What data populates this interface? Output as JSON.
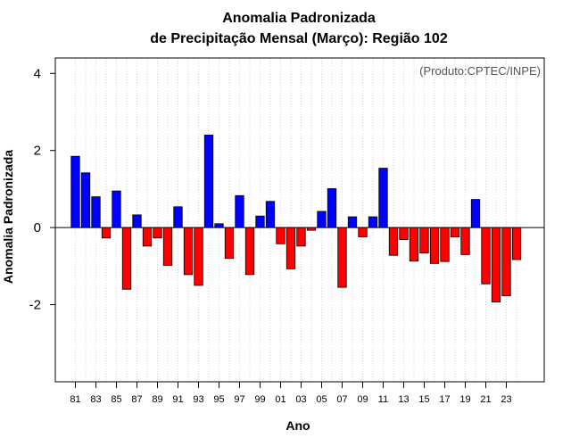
{
  "chart_data": {
    "type": "bar",
    "title_line1": "Anomalia Padronizada",
    "title_line2": "de Precipitação Mensal (Março): Região 102",
    "xlabel": "Ano",
    "ylabel": "Anomalia Padronizada",
    "annotation": "(Produto:CPTEC/INPE)",
    "ylim": [
      -4,
      4.4
    ],
    "yticks": [
      -2,
      0,
      2,
      4
    ],
    "ytick_labels": [
      "-2",
      "0",
      "2",
      "4"
    ],
    "categories": [
      "81",
      "82",
      "83",
      "84",
      "85",
      "86",
      "87",
      "88",
      "89",
      "90",
      "91",
      "92",
      "93",
      "94",
      "95",
      "96",
      "97",
      "98",
      "99",
      "00",
      "01",
      "02",
      "03",
      "04",
      "05",
      "06",
      "07",
      "08",
      "09",
      "10",
      "11",
      "12",
      "13",
      "14",
      "15",
      "16",
      "17",
      "18",
      "19",
      "20",
      "21",
      "22",
      "23",
      "24"
    ],
    "values": [
      1.85,
      1.42,
      0.8,
      -0.27,
      0.95,
      -1.6,
      0.33,
      -0.48,
      -0.27,
      -0.98,
      0.54,
      -1.22,
      -1.5,
      2.4,
      0.1,
      -0.8,
      0.83,
      -1.22,
      0.3,
      0.68,
      -0.42,
      -1.07,
      -0.48,
      -0.07,
      0.42,
      1.01,
      -1.55,
      0.28,
      -0.24,
      0.28,
      1.54,
      -0.72,
      -0.31,
      -0.87,
      -0.66,
      -0.93,
      -0.88,
      -0.24,
      -0.7,
      0.73,
      -1.46,
      -1.93,
      -1.77,
      -0.83
    ],
    "xtick_labels": [
      "81",
      "83",
      "85",
      "87",
      "89",
      "91",
      "93",
      "95",
      "97",
      "99",
      "01",
      "03",
      "05",
      "07",
      "09",
      "11",
      "13",
      "15",
      "17",
      "19",
      "21",
      "23"
    ],
    "colors": {
      "positive": "#0000ff",
      "negative": "#ff0000",
      "grid": "#d3d3d3",
      "frame": "#000000"
    },
    "grid": true
  }
}
